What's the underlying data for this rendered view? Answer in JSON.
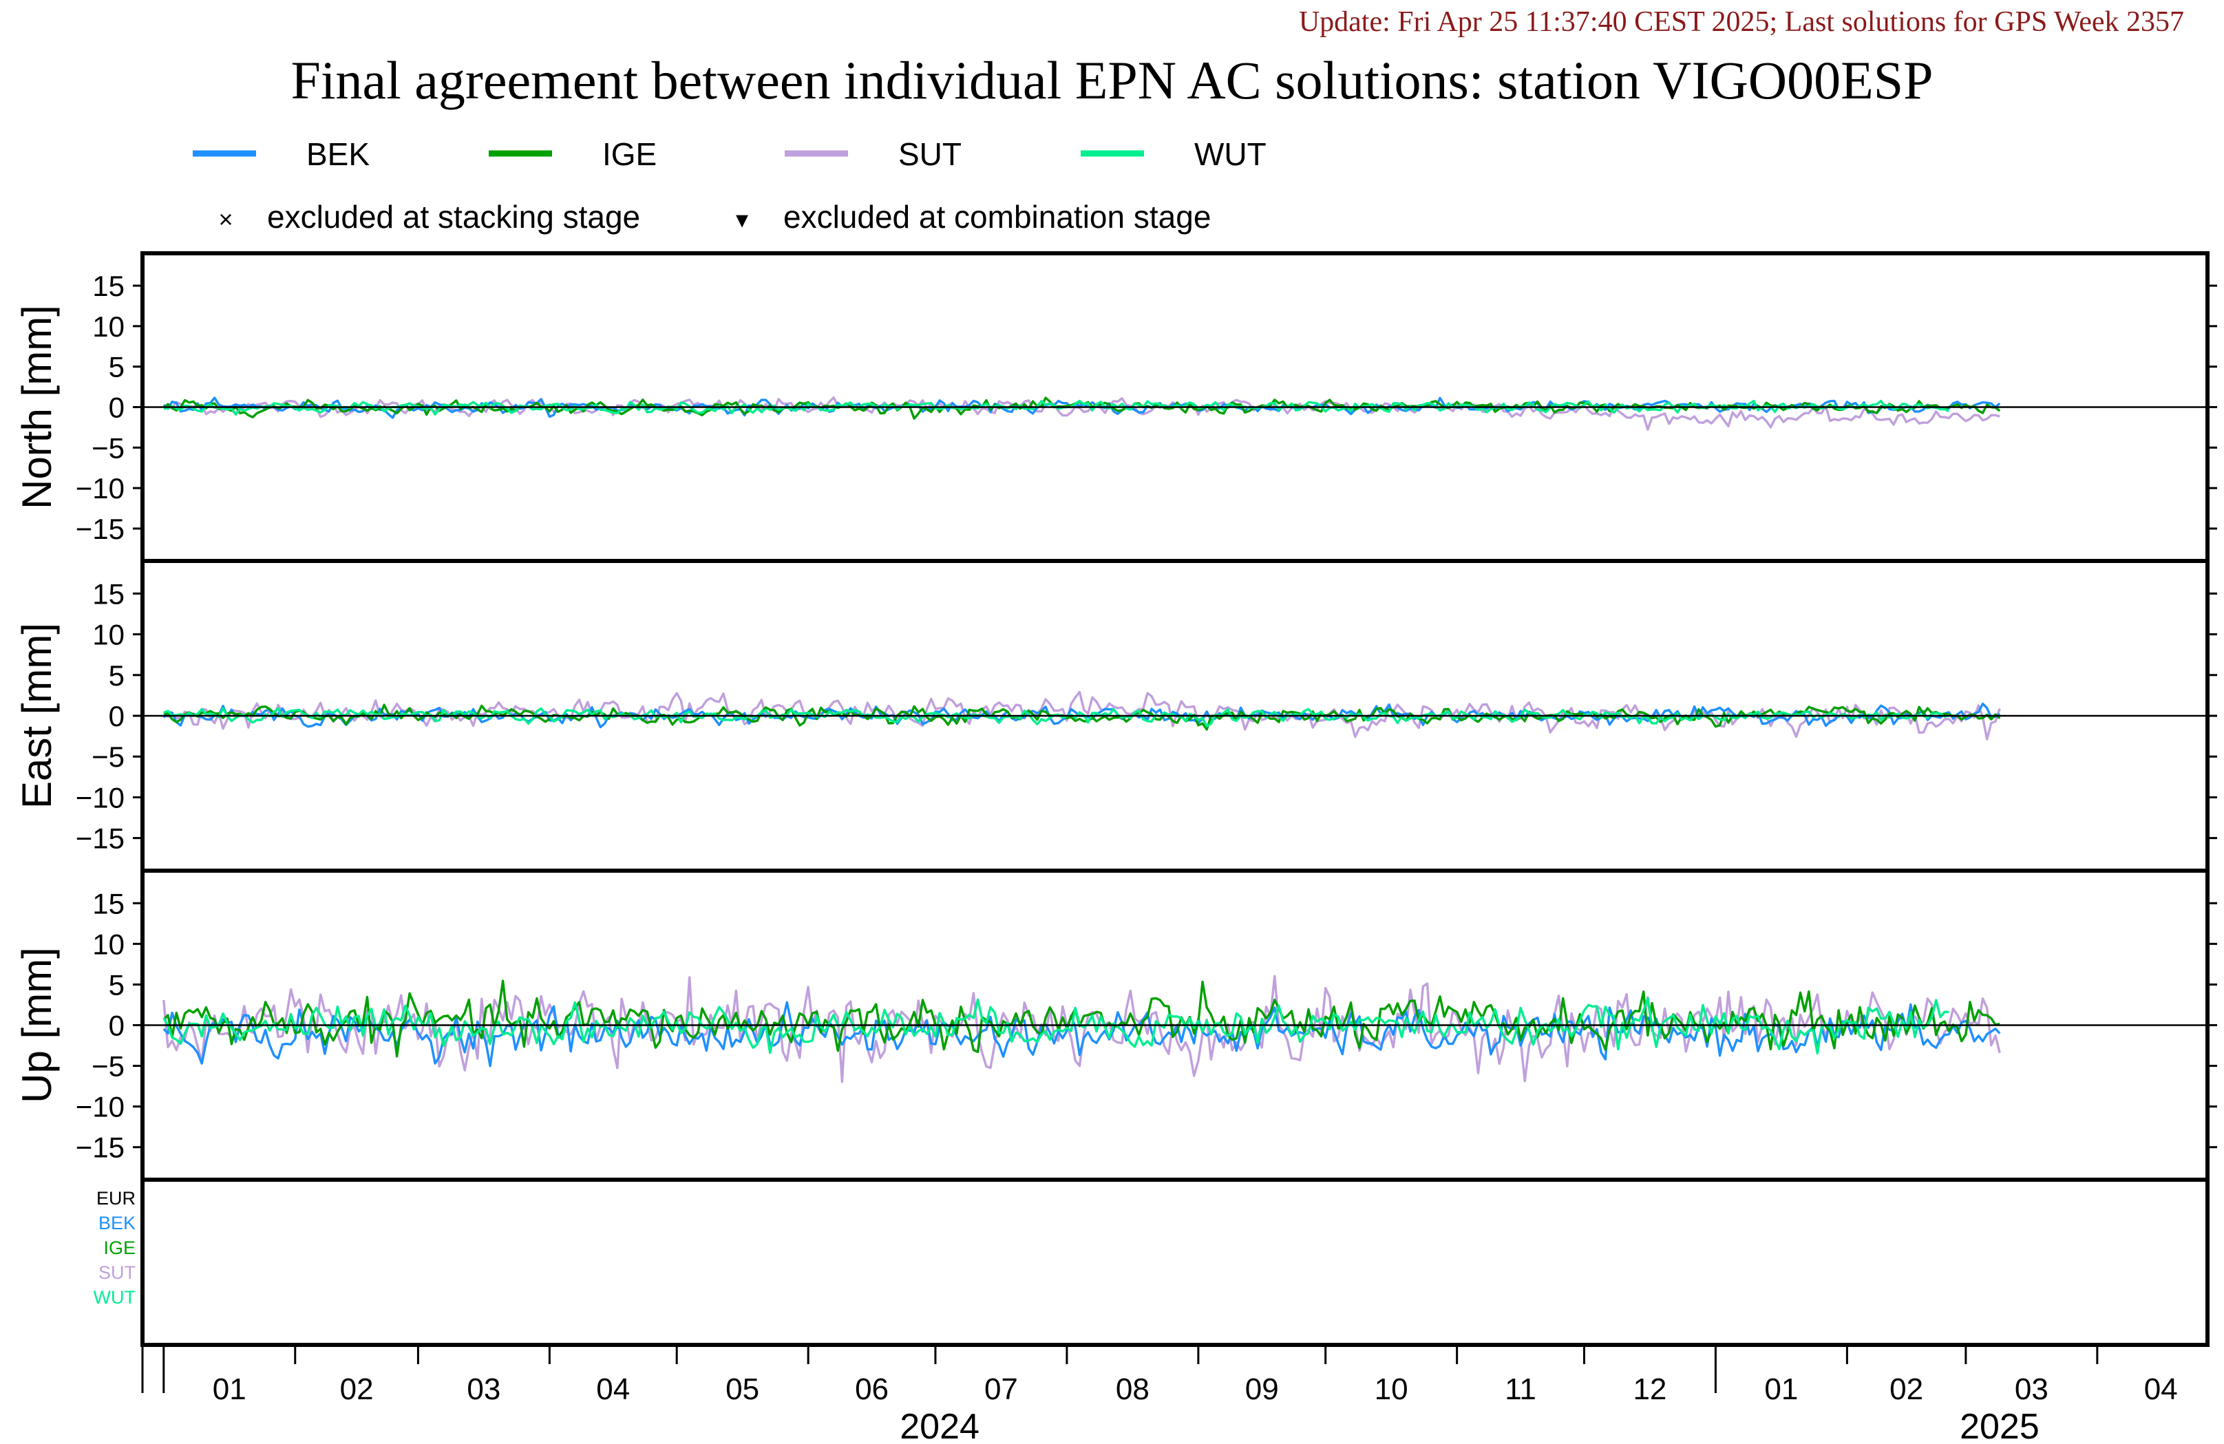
{
  "header": {
    "update_text": "Update: Fri Apr 25 11:37:40 CEST 2025; Last solutions for GPS Week 2357",
    "title": "Final agreement between individual EPN AC solutions: station VIGO00ESP"
  },
  "legend": {
    "series": [
      {
        "name": "BEK",
        "color": "#1e90ff"
      },
      {
        "name": "IGE",
        "color": "#00a000"
      },
      {
        "name": "SUT",
        "color": "#c0a0dc"
      },
      {
        "name": "WUT",
        "color": "#00ee90"
      }
    ],
    "markers": [
      {
        "symbol": "×",
        "label": "excluded at stacking stage"
      },
      {
        "symbol": "▾",
        "label": "excluded at combination stage"
      }
    ]
  },
  "small_legend": [
    {
      "name": "EUR",
      "color": "#000000"
    },
    {
      "name": "BEK",
      "color": "#1e90ff"
    },
    {
      "name": "IGE",
      "color": "#00a000"
    },
    {
      "name": "SUT",
      "color": "#c0a0dc"
    },
    {
      "name": "WUT",
      "color": "#00ee90"
    }
  ],
  "chart_data": {
    "type": "line",
    "x_range": [
      "2023-12-27",
      "2025-04-27"
    ],
    "x_month_labels": [
      "01",
      "02",
      "03",
      "04",
      "05",
      "06",
      "07",
      "08",
      "09",
      "10",
      "11",
      "12",
      "01",
      "02",
      "03",
      "04"
    ],
    "x_year_labels": [
      "2024",
      "2025"
    ],
    "data_end": "2025-03-09",
    "y_range": [
      -19,
      19
    ],
    "y_ticks": [
      15,
      10,
      5,
      0,
      -5,
      -10,
      -15
    ],
    "grid": false,
    "legend_placement": "top",
    "panels": [
      {
        "ylabel": "North [mm]",
        "amplitude": {
          "BEK": 0.35,
          "IGE": 0.35,
          "SUT": 0.45,
          "WUT": 0.3
        },
        "sut_offset_2025": -1.3
      },
      {
        "ylabel": "East [mm]",
        "amplitude": {
          "BEK": 0.45,
          "IGE": 0.45,
          "SUT": 0.75,
          "WUT": 0.35
        },
        "sut_offset_mid": 0.8
      },
      {
        "ylabel": "Up [mm]",
        "amplitude": {
          "BEK": 1.2,
          "IGE": 1.4,
          "SUT": 2.2,
          "WUT": 1.1
        },
        "bek_offset": -1.0,
        "ige_offset": 0.3,
        "sut_offset": 0.6
      }
    ]
  }
}
